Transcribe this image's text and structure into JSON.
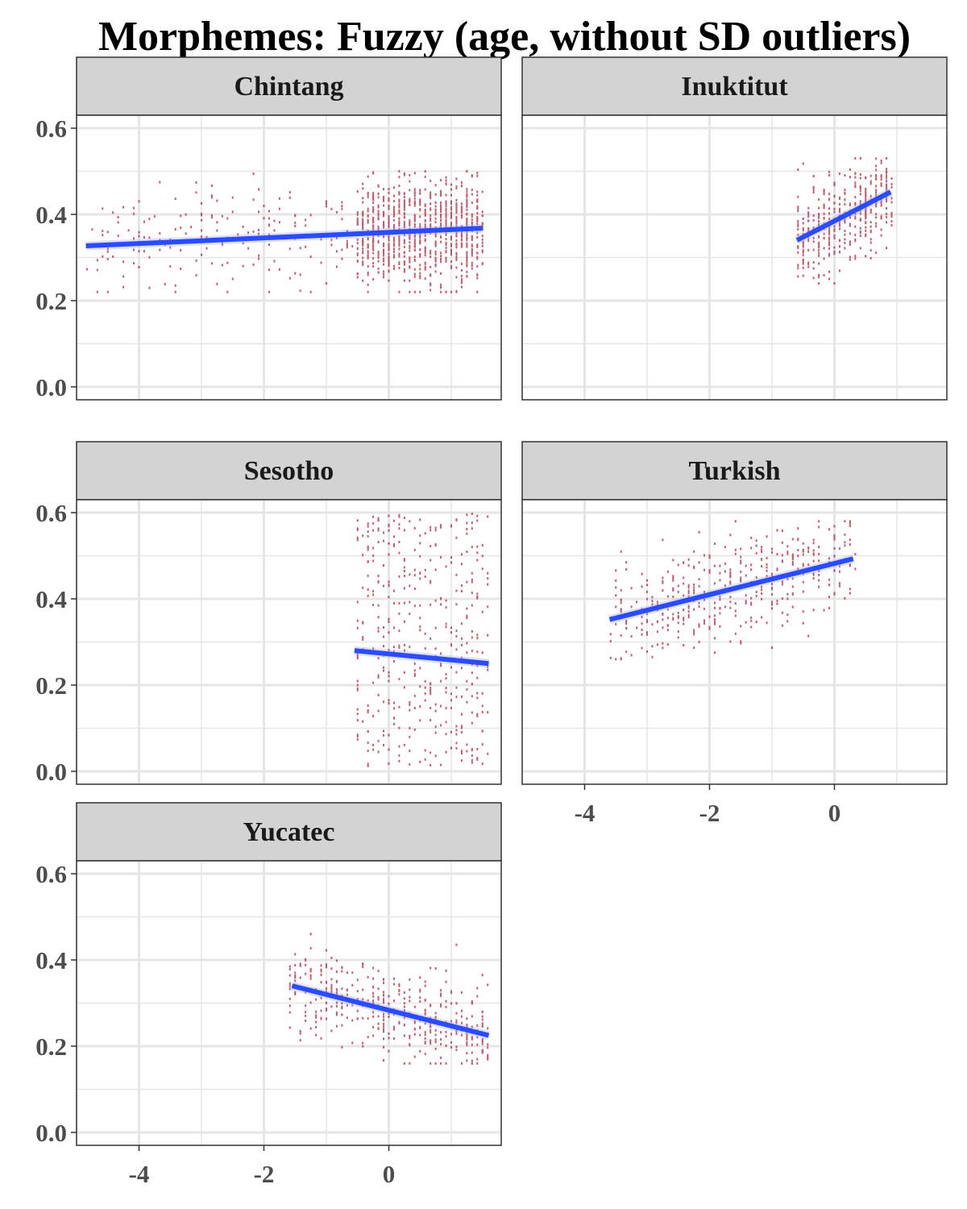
{
  "chart_data": {
    "type": "scatter",
    "title": "Morphemes: Fuzzy (age, without SD outliers)",
    "xlabel": "",
    "ylabel": "",
    "xlim": [
      -5.0,
      1.8
    ],
    "ylim": [
      -0.03,
      0.63
    ],
    "x_ticks": [
      -4,
      -2,
      0
    ],
    "y_ticks": [
      0.0,
      0.2,
      0.4,
      0.6
    ],
    "y_tick_labels": [
      "0.0",
      "0.2",
      "0.4",
      "0.6"
    ],
    "x_tick_labels": [
      "-4",
      "-2",
      "0"
    ],
    "grid": true,
    "colors": {
      "points": "#b2182b",
      "fit_line": "#2b4bff",
      "strip": "#d3d3d3",
      "panel_border": "#333333",
      "grid": "#e6e6e6"
    },
    "facets": [
      {
        "name": "Chintang",
        "point_cloud": {
          "x_range": [
            -4.85,
            1.5
          ],
          "dense_from": -0.5,
          "y_center": 0.35,
          "y_spread": 0.06,
          "y_min": 0.22,
          "y_max": 0.5
        },
        "fit": {
          "x": [
            -4.85,
            1.5
          ],
          "y": [
            0.327,
            0.368
          ]
        }
      },
      {
        "name": "Inuktitut",
        "point_cloud": {
          "x_range": [
            -0.6,
            0.9
          ],
          "y_center": 0.4,
          "y_spread": 0.05,
          "y_min": 0.24,
          "y_max": 0.53
        },
        "fit": {
          "x": [
            -0.6,
            0.9
          ],
          "y": [
            0.34,
            0.452
          ]
        }
      },
      {
        "name": "Sesotho",
        "point_cloud": {
          "x_range": [
            -0.55,
            1.6
          ],
          "y_center": 0.3,
          "y_spread": 0.18,
          "y_min": 0.01,
          "y_max": 0.6
        },
        "fit": {
          "x": [
            -0.55,
            1.6
          ],
          "y": [
            0.28,
            0.25
          ]
        }
      },
      {
        "name": "Turkish",
        "point_cloud": {
          "x_range": [
            -3.6,
            0.3
          ],
          "y_center": 0.43,
          "y_spread": 0.06,
          "y_min": 0.26,
          "y_max": 0.58
        },
        "fit": {
          "x": [
            -3.6,
            0.3
          ],
          "y": [
            0.352,
            0.493
          ]
        }
      },
      {
        "name": "Yucatec",
        "point_cloud": {
          "x_range": [
            -1.6,
            1.6
          ],
          "y_center": 0.29,
          "y_spread": 0.05,
          "y_min": 0.16,
          "y_max": 0.46
        },
        "fit": {
          "x": [
            -1.55,
            1.6
          ],
          "y": [
            0.34,
            0.225
          ]
        }
      }
    ]
  }
}
